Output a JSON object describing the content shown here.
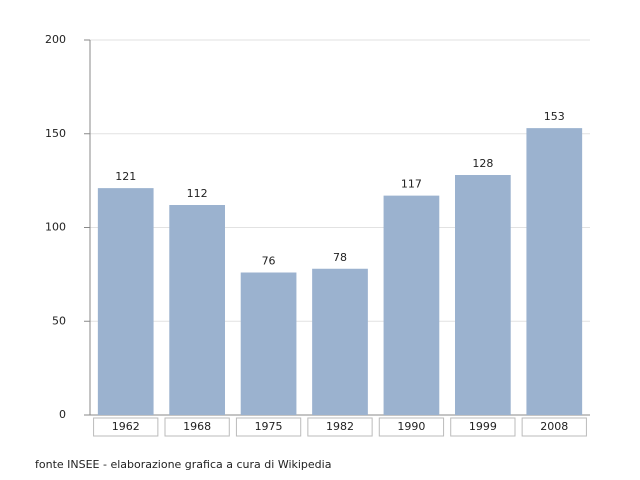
{
  "chart_data": {
    "type": "bar",
    "categories": [
      "1962",
      "1968",
      "1975",
      "1982",
      "1990",
      "1999",
      "2008"
    ],
    "values": [
      121,
      112,
      76,
      78,
      117,
      128,
      153
    ],
    "color": "#9bb2cf",
    "ylim": [
      0,
      200
    ],
    "yticks": [
      0,
      50,
      100,
      150,
      200
    ],
    "grid": true,
    "note": "fonte INSEE - elaborazione grafica a cura di Wikipedia"
  }
}
